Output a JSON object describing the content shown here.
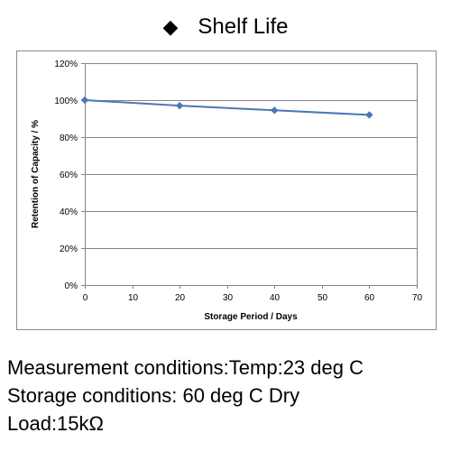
{
  "title": {
    "bullet": "◆",
    "text": "Shelf Life"
  },
  "chart_data": {
    "type": "line",
    "xlabel": "Storage Period / Days",
    "ylabel": "Retention of Capacity / %",
    "xlim": [
      0,
      70
    ],
    "ylim": [
      0,
      120
    ],
    "x_ticks": [
      0,
      10,
      20,
      30,
      40,
      50,
      60,
      70
    ],
    "y_ticks": [
      0,
      20,
      40,
      60,
      80,
      100,
      120
    ],
    "y_tick_labels": [
      "0%",
      "20%",
      "40%",
      "60%",
      "80%",
      "100%",
      "120%"
    ],
    "grid": "horizontal",
    "legend": "none",
    "series": [
      {
        "color": "#4a78b5",
        "marker": "diamond",
        "x": [
          0,
          20,
          40,
          60
        ],
        "y": [
          100,
          97,
          94.5,
          92
        ]
      }
    ]
  },
  "notes": [
    "Measurement conditions:Temp:23 deg C",
    "Storage conditions: 60 deg C Dry",
    "Load:15kΩ"
  ]
}
